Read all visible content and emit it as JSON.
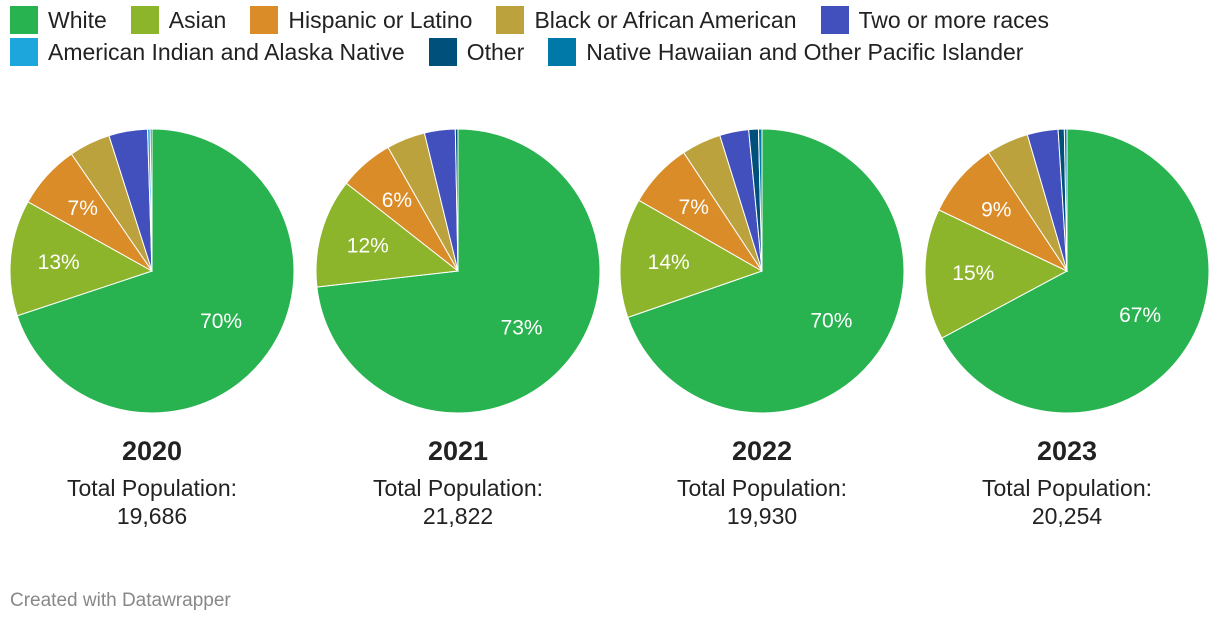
{
  "chart_data": {
    "type": "pie",
    "title": "",
    "legend": [
      "White",
      "Asian",
      "Hispanic or Latino",
      "Black or African American",
      "Two or more races",
      "American Indian and Alaska Native",
      "Other",
      "Native Hawaiian and Other Pacific Islander"
    ],
    "colors": [
      "#28b350",
      "#8db52b",
      "#d98c28",
      "#bba23d",
      "#4250be",
      "#1da6dc",
      "#00507c",
      "#0078a8"
    ],
    "charts": [
      {
        "year": "2020",
        "caption": "Total Population:",
        "total": "19,686",
        "values": [
          69.9,
          13.2,
          7.3,
          4.7,
          4.4,
          0.3,
          0.2,
          0.0
        ],
        "labels": [
          "70%",
          "13%",
          "7%",
          "",
          "",
          "",
          "",
          ""
        ]
      },
      {
        "year": "2021",
        "caption": "Total Population:",
        "total": "21,822",
        "values": [
          73.2,
          12.4,
          6.2,
          4.4,
          3.5,
          0.0,
          0.3,
          0.0
        ],
        "labels": [
          "73%",
          "12%",
          "6%",
          "",
          "",
          "",
          "",
          ""
        ]
      },
      {
        "year": "2022",
        "caption": "Total Population:",
        "total": "19,930",
        "values": [
          69.7,
          13.6,
          7.4,
          4.5,
          3.3,
          0.0,
          1.1,
          0.4
        ],
        "labels": [
          "70%",
          "14%",
          "7%",
          "",
          "",
          "",
          "",
          ""
        ]
      },
      {
        "year": "2023",
        "caption": "Total Population:",
        "total": "20,254",
        "values": [
          67.1,
          14.9,
          8.6,
          4.8,
          3.5,
          0.0,
          0.7,
          0.3
        ],
        "labels": [
          "67%",
          "15%",
          "9%",
          "",
          "",
          "",
          "",
          ""
        ]
      }
    ]
  },
  "footer": {
    "credit": "Created with Datawrapper"
  }
}
